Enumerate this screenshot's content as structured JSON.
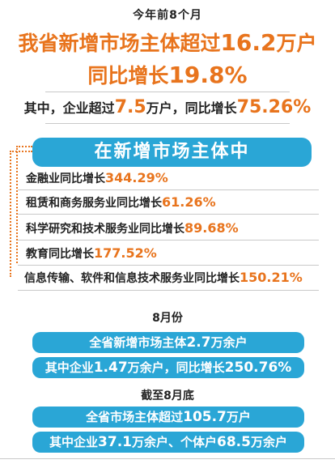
{
  "header": {
    "small_title": "今年前8个月",
    "line1_prefix": "我省新增市场主体超过",
    "line1_number": "16.2",
    "line1_suffix": "万户",
    "line2_prefix": "同比增长",
    "line2_number": "19.8%"
  },
  "enterprise": {
    "prefix": "其中，企业超过",
    "number": "7.5",
    "mid": "万户，同比增长",
    "growth": "75.26%"
  },
  "new_entities_banner": "在新增市场主体中",
  "industries": [
    {
      "label": "金融业同比增长",
      "value": "344.29%"
    },
    {
      "label": "租赁和商务服务业同比增长",
      "value": "61.26%"
    },
    {
      "label": "科学研究和技术服务业同比增长",
      "value": "89.68%"
    },
    {
      "label": "教育同比增长",
      "value": "177.52%"
    },
    {
      "label": "信息传输、软件和信息技术服务业同比增长",
      "value": "150.21%"
    }
  ],
  "august": {
    "title": "8月份",
    "banner1_prefix": "全省新增市场主体",
    "banner1_number": "2.7",
    "banner1_suffix": "万余户",
    "banner2_prefix": "其中企业",
    "banner2_number": "1.47",
    "banner2_mid": "万余户，同比增长",
    "banner2_growth": "250.76%"
  },
  "end_august": {
    "title": "截至8月底",
    "banner1_prefix": "全省市场主体超过",
    "banner1_number": "105.7",
    "banner1_suffix": "万户",
    "banner2_prefix": "其中企业",
    "banner2_number": "37.1",
    "banner2_mid": "万余户、个体户",
    "banner2_number2": "68.5",
    "banner2_suffix": "万余户"
  },
  "colors": {
    "accent": "#e8741d",
    "banner": "#2aa6d6"
  }
}
